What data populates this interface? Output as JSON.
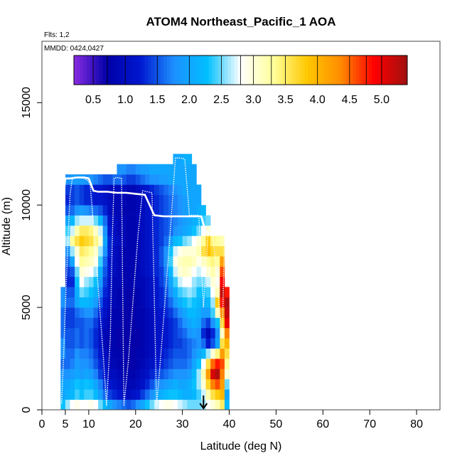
{
  "chart_data": {
    "type": "heatmap",
    "title": "ATOM4 Northeast_Pacific_1 AOA",
    "flights_note": "Flts: 1,2",
    "dates_note": "MMDD: 0424,0427",
    "xlabel": "Latitude (deg N)",
    "ylabel": "Altitude (m)",
    "xlim": [
      0,
      85
    ],
    "ylim": [
      0,
      18000
    ],
    "x_ticks": [
      0,
      5,
      10,
      20,
      30,
      40,
      50,
      60,
      70,
      80
    ],
    "y_ticks": [
      0,
      5000,
      10000,
      15000
    ],
    "colorbar": {
      "min": 0.2,
      "max": 5.4,
      "ticks": [
        0.5,
        1.0,
        1.5,
        2.0,
        2.5,
        3.0,
        3.5,
        4.0,
        4.5,
        5.0
      ],
      "tick_labels": [
        "0.5",
        "1.0",
        "1.5",
        "2.0",
        "2.5",
        "3.0",
        "3.5",
        "4.0",
        "4.5",
        "5.0"
      ],
      "colors": [
        "#8a2be2",
        "#0000a8",
        "#0018d0",
        "#1e90ff",
        "#00bfff",
        "#ffffff",
        "#ffff99",
        "#ffc800",
        "#ff8c00",
        "#ff0000",
        "#a01010"
      ]
    },
    "lat_columns": [
      4,
      5,
      6,
      7,
      8,
      9,
      10,
      11,
      12,
      13,
      14,
      15,
      16,
      17,
      18,
      19,
      20,
      21,
      22,
      23,
      24,
      25,
      26,
      27,
      28,
      29,
      30,
      31,
      32,
      33,
      34,
      35,
      36,
      37,
      38,
      39
    ],
    "alt_bins": [
      0,
      500,
      1000,
      1500,
      2000,
      2500,
      3000,
      3500,
      4000,
      4500,
      5000,
      5500,
      6000,
      6500,
      7000,
      7500,
      8000,
      8500,
      9000,
      9500,
      10000,
      10500,
      11000,
      11500,
      12000
    ],
    "column_top_m": [
      6000,
      11500,
      11500,
      11500,
      11500,
      11500,
      11500,
      11500,
      11500,
      11500,
      11500,
      11500,
      12000,
      12000,
      12000,
      12000,
      12000,
      12000,
      12000,
      12000,
      12000,
      12000,
      12000,
      12000,
      12500,
      12500,
      12500,
      12500,
      12000,
      11000,
      10000,
      9500,
      9000,
      8500,
      8500,
      6000
    ],
    "aoa_values_by_column": [
      [
        2.3,
        2.0,
        2.0,
        1.8,
        1.6,
        1.8,
        1.8,
        1.6,
        1.6,
        1.6,
        1.8,
        1.8
      ],
      [
        2.6,
        2.1,
        2.0,
        1.8,
        1.6,
        1.6,
        1.5,
        1.5,
        1.4,
        1.4,
        1.6,
        1.5,
        1.3,
        1.4,
        1.6,
        1.8,
        2.6,
        2.4,
        2.0,
        1.5,
        1.3,
        1.4,
        1.8
      ],
      [
        2.8,
        2.2,
        2.1,
        1.9,
        1.7,
        1.6,
        1.5,
        1.5,
        1.4,
        1.4,
        1.6,
        1.5,
        1.3,
        1.5,
        2.0,
        2.6,
        3.3,
        2.7,
        2.2,
        1.6,
        1.4,
        1.4,
        1.9
      ],
      [
        2.9,
        2.4,
        2.3,
        2.0,
        1.9,
        1.8,
        1.6,
        1.6,
        1.5,
        1.6,
        2.0,
        2.1,
        2.3,
        2.5,
        2.8,
        3.0,
        3.6,
        3.2,
        2.6,
        1.8,
        1.5,
        1.5,
        1.9
      ],
      [
        2.8,
        2.3,
        2.2,
        1.9,
        1.8,
        1.7,
        1.5,
        1.5,
        1.5,
        1.7,
        2.2,
        2.5,
        2.8,
        3.0,
        3.3,
        3.5,
        3.8,
        3.5,
        2.7,
        1.9,
        1.4,
        1.4,
        1.9
      ],
      [
        2.8,
        2.4,
        2.3,
        2.0,
        1.8,
        1.7,
        1.6,
        1.6,
        1.6,
        1.8,
        2.2,
        2.4,
        2.6,
        2.9,
        3.2,
        3.4,
        3.7,
        3.5,
        2.7,
        1.8,
        1.3,
        1.3,
        1.8
      ],
      [
        2.9,
        2.4,
        2.2,
        1.9,
        1.7,
        1.6,
        1.5,
        1.5,
        1.6,
        1.8,
        2.1,
        2.3,
        2.5,
        2.8,
        3.1,
        3.3,
        3.6,
        3.4,
        2.7,
        1.7,
        1.3,
        1.3,
        1.8
      ],
      [
        2.8,
        2.2,
        2.0,
        1.7,
        1.5,
        1.4,
        1.3,
        1.3,
        1.4,
        1.6,
        1.9,
        2.1,
        2.3,
        2.6,
        2.9,
        3.1,
        3.4,
        3.1,
        2.5,
        1.6,
        1.2,
        1.2,
        1.7
      ],
      [
        2.5,
        1.9,
        1.7,
        1.4,
        1.3,
        1.2,
        1.1,
        1.1,
        1.2,
        1.3,
        1.5,
        1.7,
        1.9,
        2.1,
        2.4,
        2.6,
        3.0,
        2.7,
        2.2,
        1.5,
        1.2,
        1.2,
        1.6
      ],
      [
        2.2,
        1.6,
        1.4,
        1.2,
        1.1,
        1.0,
        0.9,
        0.9,
        1.0,
        1.1,
        1.2,
        1.3,
        1.4,
        1.5,
        1.6,
        1.8,
        2.0,
        1.8,
        1.6,
        1.3,
        1.1,
        1.1,
        1.5
      ],
      [
        2.0,
        1.4,
        1.2,
        1.0,
        0.9,
        0.9,
        0.8,
        0.8,
        0.8,
        0.9,
        1.0,
        1.1,
        1.1,
        1.2,
        1.2,
        1.3,
        1.3,
        1.2,
        1.1,
        1.0,
        1.0,
        1.0,
        1.5
      ],
      [
        1.8,
        1.3,
        1.1,
        1.0,
        0.9,
        0.8,
        0.8,
        0.8,
        0.8,
        0.8,
        0.9,
        0.9,
        0.9,
        1.0,
        1.0,
        1.0,
        1.1,
        1.0,
        1.0,
        0.9,
        0.9,
        1.0,
        1.6
      ],
      [
        1.7,
        1.2,
        1.0,
        0.9,
        0.8,
        0.8,
        0.7,
        0.7,
        0.8,
        0.8,
        0.8,
        0.8,
        0.9,
        0.9,
        0.9,
        0.9,
        1.0,
        0.9,
        0.9,
        0.9,
        0.9,
        1.0,
        1.6,
        1.8
      ],
      [
        1.6,
        1.1,
        0.9,
        0.8,
        0.8,
        0.7,
        0.7,
        0.7,
        0.7,
        0.7,
        0.8,
        0.8,
        0.8,
        0.8,
        0.8,
        0.8,
        0.9,
        0.9,
        0.9,
        0.8,
        0.9,
        1.0,
        1.5,
        1.8
      ],
      [
        1.5,
        1.0,
        0.9,
        0.8,
        0.7,
        0.7,
        0.7,
        0.7,
        0.7,
        0.7,
        0.7,
        0.7,
        0.8,
        0.8,
        0.8,
        0.8,
        0.8,
        0.8,
        0.8,
        0.8,
        0.8,
        0.9,
        1.4,
        1.7
      ],
      [
        1.6,
        1.1,
        0.9,
        0.8,
        0.7,
        0.7,
        0.7,
        0.7,
        0.7,
        0.7,
        0.7,
        0.8,
        0.8,
        0.8,
        0.8,
        0.8,
        0.8,
        0.8,
        0.8,
        0.8,
        0.8,
        0.9,
        1.4,
        1.7
      ],
      [
        1.8,
        1.2,
        1.0,
        0.9,
        0.8,
        0.8,
        0.7,
        0.7,
        0.8,
        0.8,
        0.8,
        0.8,
        0.9,
        0.9,
        0.9,
        0.9,
        0.9,
        0.9,
        0.9,
        0.9,
        0.9,
        1.0,
        1.5,
        1.8
      ],
      [
        2.0,
        1.4,
        1.1,
        1.0,
        0.9,
        0.8,
        0.8,
        0.8,
        0.8,
        0.8,
        0.9,
        0.9,
        0.9,
        1.0,
        1.0,
        1.0,
        1.0,
        1.0,
        1.0,
        1.0,
        1.0,
        1.1,
        1.6,
        1.9
      ],
      [
        2.3,
        1.6,
        1.3,
        1.1,
        1.0,
        0.9,
        0.9,
        0.9,
        0.9,
        0.9,
        1.0,
        1.0,
        1.0,
        1.1,
        1.1,
        1.1,
        1.1,
        1.1,
        1.1,
        1.1,
        1.1,
        1.2,
        1.7,
        1.9
      ],
      [
        2.5,
        1.8,
        1.5,
        1.3,
        1.1,
        1.0,
        1.0,
        1.0,
        1.0,
        1.0,
        1.1,
        1.1,
        1.1,
        1.2,
        1.2,
        1.2,
        1.2,
        1.2,
        1.2,
        1.2,
        1.2,
        1.3,
        1.8,
        2.0
      ],
      [
        2.7,
        2.0,
        1.7,
        1.4,
        1.2,
        1.1,
        1.1,
        1.1,
        1.1,
        1.1,
        1.2,
        1.2,
        1.2,
        1.3,
        1.3,
        1.3,
        1.3,
        1.3,
        1.3,
        1.3,
        1.3,
        1.4,
        1.8,
        2.0
      ],
      [
        2.8,
        2.1,
        1.8,
        1.5,
        1.3,
        1.2,
        1.1,
        1.1,
        1.1,
        1.2,
        1.3,
        1.3,
        1.4,
        1.4,
        1.5,
        1.5,
        1.4,
        1.4,
        1.4,
        1.4,
        1.4,
        1.5,
        1.9,
        2.0
      ],
      [
        2.9,
        2.2,
        1.9,
        1.6,
        1.4,
        1.3,
        1.2,
        1.2,
        1.2,
        1.3,
        1.4,
        1.5,
        1.6,
        1.7,
        1.8,
        1.8,
        1.6,
        1.5,
        1.5,
        1.5,
        1.5,
        1.6,
        1.9,
        2.0
      ],
      [
        2.9,
        2.3,
        2.0,
        1.7,
        1.5,
        1.4,
        1.3,
        1.3,
        1.3,
        1.4,
        1.6,
        1.8,
        2.0,
        2.2,
        2.4,
        2.3,
        1.9,
        1.6,
        1.6,
        1.6,
        1.6,
        1.7,
        2.0,
        2.0
      ],
      [
        2.8,
        2.3,
        2.1,
        1.8,
        1.6,
        1.5,
        1.4,
        1.4,
        1.4,
        1.6,
        1.9,
        2.1,
        2.4,
        2.7,
        2.9,
        2.7,
        2.2,
        1.8,
        1.7,
        1.7,
        1.7,
        1.8,
        2.0,
        2.0,
        2.0
      ],
      [
        2.7,
        2.2,
        2.0,
        1.8,
        1.6,
        1.5,
        1.4,
        1.5,
        1.6,
        1.8,
        2.1,
        2.4,
        2.7,
        3.0,
        3.1,
        2.9,
        2.3,
        1.9,
        1.8,
        1.8,
        1.8,
        1.9,
        2.0,
        2.0,
        2.0
      ],
      [
        2.6,
        2.1,
        2.0,
        1.8,
        1.6,
        1.5,
        1.5,
        1.6,
        1.8,
        2.0,
        2.3,
        2.5,
        2.8,
        3.1,
        3.2,
        3.0,
        2.5,
        2.0,
        1.9,
        1.9,
        1.9,
        2.0,
        2.0,
        2.0,
        2.1
      ],
      [
        2.5,
        2.1,
        2.1,
        1.9,
        1.7,
        1.6,
        1.6,
        1.8,
        2.0,
        2.2,
        2.4,
        2.6,
        2.8,
        3.0,
        3.2,
        3.0,
        2.6,
        2.1,
        2.0,
        2.0,
        2.0,
        2.0,
        2.0,
        2.0,
        2.1
      ],
      [
        2.5,
        2.2,
        2.3,
        2.2,
        2.0,
        1.8,
        1.7,
        1.9,
        2.1,
        2.2,
        2.3,
        2.5,
        2.6,
        2.8,
        3.1,
        3.0,
        2.8,
        2.3,
        2.1,
        2.0,
        2.0,
        2.0,
        2.0,
        2.0
      ],
      [
        2.5,
        2.4,
        2.6,
        2.6,
        2.3,
        2.0,
        1.8,
        1.8,
        2.0,
        2.1,
        2.2,
        2.3,
        2.5,
        2.7,
        2.9,
        3.2,
        3.0,
        2.5,
        2.2,
        2.1,
        2.0,
        2.0
      ],
      [
        2.6,
        2.7,
        3.0,
        3.2,
        2.8,
        2.2,
        1.6,
        1.3,
        1.6,
        1.9,
        2.1,
        2.3,
        2.5,
        2.8,
        3.1,
        3.6,
        3.3,
        2.8,
        2.4,
        2.2
      ],
      [
        2.8,
        3.2,
        3.7,
        4.2,
        3.6,
        2.6,
        1.2,
        0.9,
        1.4,
        1.9,
        2.2,
        2.4,
        2.7,
        3.0,
        3.3,
        3.9,
        3.8,
        3.0,
        2.5
      ],
      [
        3.0,
        3.6,
        4.4,
        5.1,
        4.5,
        3.0,
        1.5,
        1.3,
        1.8,
        2.4,
        2.6,
        2.8,
        3.0,
        3.2,
        3.4,
        3.7,
        3.4,
        2.8
      ],
      [
        3.2,
        3.8,
        4.6,
        5.3,
        4.8,
        3.4,
        2.0,
        1.8,
        2.3,
        3.1,
        3.8,
        3.2,
        2.9,
        3.0,
        3.3,
        3.6,
        3.3
      ],
      [
        3.5,
        4.0,
        4.2,
        4.4,
        4.6,
        4.2,
        3.6,
        3.2,
        3.8,
        4.3,
        4.8,
        5.2,
        4.9,
        4.6,
        4.2,
        3.6,
        3.2
      ],
      [
        2.2,
        2.0,
        2.5,
        3.0,
        3.3,
        3.6,
        4.0,
        4.4,
        5.0,
        5.2,
        5.3,
        4.8
      ]
    ],
    "flight_tracks": [
      {
        "lat": [
          4.2,
          4.6,
          5.0,
          5.5,
          6.0,
          6.5,
          7.0,
          8.0,
          9.0,
          9.8,
          10.3
        ],
        "alt": [
          300,
          2500,
          5000,
          8000,
          10500,
          11300,
          11350,
          11350,
          11300,
          11200,
          11000
        ]
      },
      {
        "lat": [
          10.3,
          11.0,
          12.0,
          13.0,
          13.8,
          14.6,
          15.0,
          15.4,
          16.0,
          17.0,
          17.5
        ],
        "alt": [
          11000,
          9000,
          6000,
          3000,
          200,
          3500,
          8000,
          11300,
          11350,
          11300,
          200
        ]
      },
      {
        "lat": [
          17.5,
          18.5,
          19.5,
          20.5,
          21.5,
          22.5,
          23.5,
          24.5
        ],
        "alt": [
          200,
          2500,
          5500,
          8500,
          10700,
          10650,
          10600,
          200
        ]
      },
      {
        "lat": [
          24.5,
          25.5,
          26.5,
          27.5,
          28.5,
          29.5,
          30.5,
          31.5,
          32.5,
          33.5,
          34.5,
          35.5,
          36.5,
          37.5,
          38.5,
          39.0
        ],
        "alt": [
          200,
          3000,
          6000,
          9000,
          12300,
          12300,
          12250,
          9500,
          9500,
          9500,
          5000,
          8700,
          8600,
          6000,
          3500,
          8500
        ]
      }
    ],
    "flight_track_2": [
      {
        "lat": [
          4.0,
          5.0,
          6.0,
          7.5,
          9.0,
          10.0,
          11.0,
          12.0,
          14.0,
          16.0,
          18.0,
          20.0,
          22.0,
          24.0,
          26.0,
          28.0,
          30.0,
          32.0,
          34.0,
          35.0,
          36.0
        ],
        "alt": [
          9000,
          11300,
          11300,
          11350,
          11350,
          11300,
          10700,
          10650,
          10650,
          10600,
          10600,
          10550,
          10500,
          9500,
          9450,
          9450,
          9450,
          9450,
          9450,
          8700,
          8600
        ]
      }
    ],
    "arrow_marker_lat": 34.5,
    "arrow_marker_alt": [
      0,
      700
    ]
  }
}
